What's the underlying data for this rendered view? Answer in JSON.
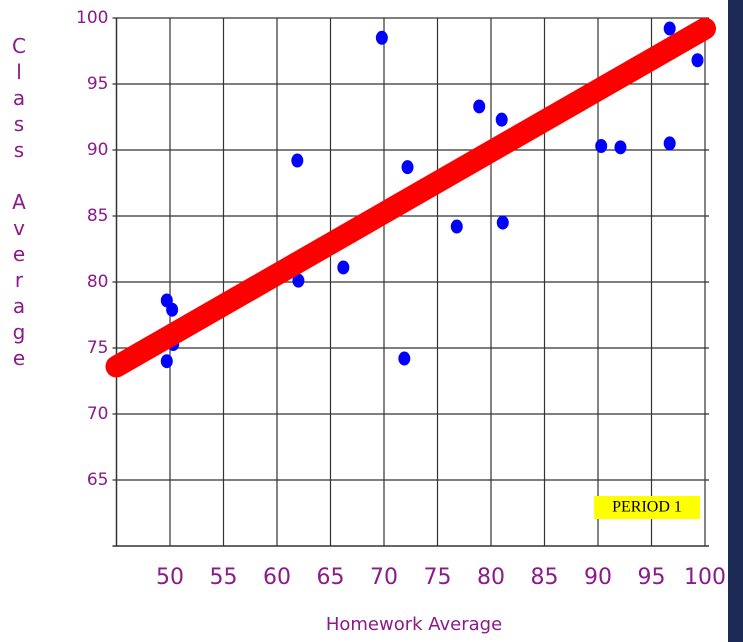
{
  "chart_data": {
    "type": "scatter",
    "x_label": "Homework Average",
    "y_label": "Class Average",
    "annotation": "PERIOD 1",
    "xlim": [
      45,
      100
    ],
    "ylim": [
      60,
      100
    ],
    "xticks": [
      50,
      55,
      60,
      65,
      70,
      75,
      80,
      85,
      90,
      95,
      100
    ],
    "yticks": [
      65,
      70,
      75,
      80,
      85,
      90,
      95,
      100
    ],
    "grid": true,
    "points": {
      "color": "#0000ff",
      "x": [
        49.7,
        50.2,
        50.3,
        49.7,
        61.9,
        62.0,
        66.2,
        69.8,
        71.9,
        72.2,
        76.8,
        78.9,
        81.0,
        81.1,
        90.3,
        92.1,
        96.7,
        96.7,
        99.3
      ],
      "y": [
        78.6,
        77.9,
        75.3,
        74.0,
        89.2,
        80.1,
        81.1,
        98.5,
        74.2,
        88.7,
        84.2,
        93.3,
        92.3,
        84.5,
        90.3,
        90.2,
        90.5,
        99.2,
        96.8
      ]
    },
    "trendline": {
      "color": "#ff0000",
      "x": [
        45,
        100
      ],
      "y": [
        73.6,
        99.2
      ]
    }
  }
}
